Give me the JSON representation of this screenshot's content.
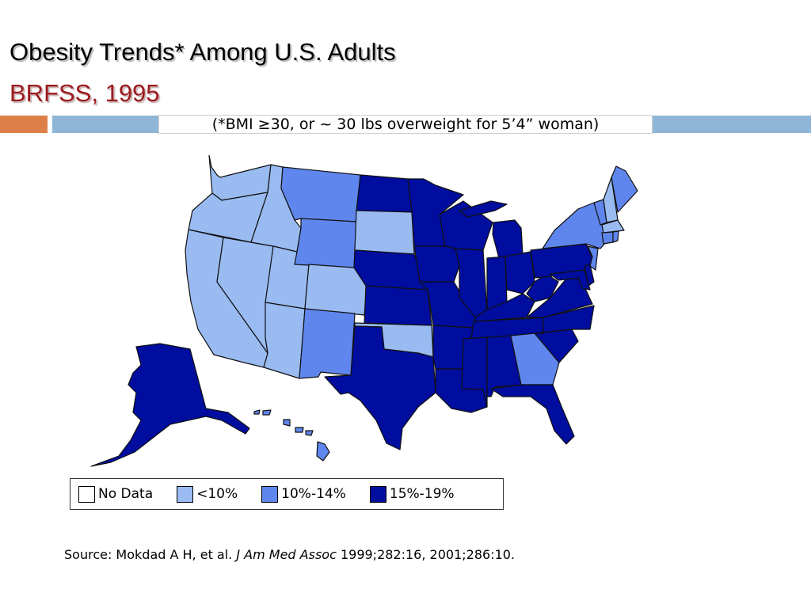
{
  "slide": {
    "title": "Obesity Trends* Among U.S. Adults",
    "subtitle": "BRFSS, 1995",
    "note": "(*BMI ≥30, or ~ 30 lbs overweight for 5’4” woman)"
  },
  "colors": {
    "no_data": "#ffffff",
    "under_10": "#99bbf2",
    "10_14": "#5f86ec",
    "15_19": "#000d9e",
    "accent_orange": "#dd7f49",
    "accent_blue": "#8fb6d6",
    "subtitle_red": "#9c1b20"
  },
  "legend": {
    "items": [
      {
        "label": "No Data",
        "color": "#ffffff"
      },
      {
        "label": "<10%",
        "color": "#99bbf2"
      },
      {
        "label": "10%-14%",
        "color": "#5f86ec"
      },
      {
        "label": "15%-19%",
        "color": "#000d9e"
      }
    ]
  },
  "map": {
    "regions": [
      {
        "state": "Washington",
        "category": "<10%"
      },
      {
        "state": "Oregon",
        "category": "<10%"
      },
      {
        "state": "California",
        "category": "<10%"
      },
      {
        "state": "Nevada",
        "category": "<10%"
      },
      {
        "state": "Idaho",
        "category": "<10%"
      },
      {
        "state": "Utah",
        "category": "<10%"
      },
      {
        "state": "Arizona",
        "category": "<10%"
      },
      {
        "state": "New Mexico",
        "category": "10%-14%"
      },
      {
        "state": "Colorado",
        "category": "<10%"
      },
      {
        "state": "Wyoming",
        "category": "10%-14%"
      },
      {
        "state": "Montana",
        "category": "10%-14%"
      },
      {
        "state": "North Dakota",
        "category": "15%-19%"
      },
      {
        "state": "South Dakota",
        "category": "<10%"
      },
      {
        "state": "Nebraska",
        "category": "15%-19%"
      },
      {
        "state": "Kansas",
        "category": "15%-19%"
      },
      {
        "state": "Oklahoma",
        "category": "<10%"
      },
      {
        "state": "Texas",
        "category": "15%-19%"
      },
      {
        "state": "Minnesota",
        "category": "15%-19%"
      },
      {
        "state": "Iowa",
        "category": "15%-19%"
      },
      {
        "state": "Missouri",
        "category": "15%-19%"
      },
      {
        "state": "Arkansas",
        "category": "15%-19%"
      },
      {
        "state": "Louisiana",
        "category": "15%-19%"
      },
      {
        "state": "Wisconsin",
        "category": "15%-19%"
      },
      {
        "state": "Illinois",
        "category": "15%-19%"
      },
      {
        "state": "Michigan",
        "category": "15%-19%"
      },
      {
        "state": "Indiana",
        "category": "15%-19%"
      },
      {
        "state": "Ohio",
        "category": "15%-19%"
      },
      {
        "state": "Kentucky",
        "category": "15%-19%"
      },
      {
        "state": "Tennessee",
        "category": "15%-19%"
      },
      {
        "state": "Mississippi",
        "category": "15%-19%"
      },
      {
        "state": "Alabama",
        "category": "15%-19%"
      },
      {
        "state": "Georgia",
        "category": "10%-14%"
      },
      {
        "state": "Florida",
        "category": "15%-19%"
      },
      {
        "state": "South Carolina",
        "category": "15%-19%"
      },
      {
        "state": "North Carolina",
        "category": "15%-19%"
      },
      {
        "state": "Virginia",
        "category": "15%-19%"
      },
      {
        "state": "West Virginia",
        "category": "15%-19%"
      },
      {
        "state": "Pennsylvania",
        "category": "15%-19%"
      },
      {
        "state": "Maryland",
        "category": "15%-19%"
      },
      {
        "state": "Delaware",
        "category": "15%-19%"
      },
      {
        "state": "New Jersey",
        "category": "10%-14%"
      },
      {
        "state": "New York",
        "category": "10%-14%"
      },
      {
        "state": "Vermont",
        "category": "10%-14%"
      },
      {
        "state": "New Hampshire",
        "category": "<10%"
      },
      {
        "state": "Maine",
        "category": "10%-14%"
      },
      {
        "state": "Massachusetts",
        "category": "<10%"
      },
      {
        "state": "Connecticut",
        "category": "10%-14%"
      },
      {
        "state": "Rhode Island",
        "category": "10%-14%"
      },
      {
        "state": "Alaska",
        "category": "15%-19%"
      },
      {
        "state": "Hawaii",
        "category": "10%-14%"
      }
    ]
  },
  "source": {
    "prefix": "Source: Mokdad A H, et al. ",
    "journal": "J Am Med Assoc",
    "suffix": " 1999;282:16, 2001;286:10."
  }
}
